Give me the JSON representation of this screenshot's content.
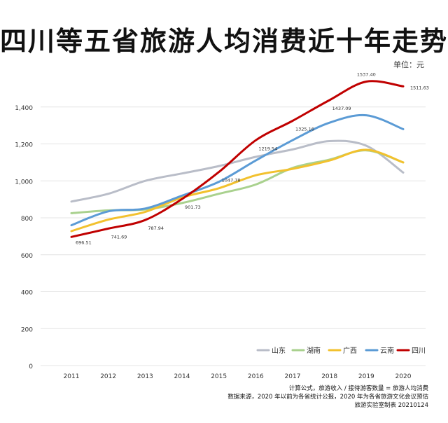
{
  "chart_data": {
    "type": "line",
    "title": "四川等五省旅游人均消费近十年走势",
    "unit": "单位：元",
    "x": [
      "2011",
      "2012",
      "2013",
      "2014",
      "2015",
      "2016",
      "2017",
      "2018",
      "2019",
      "2020"
    ],
    "ylim": [
      0,
      1600
    ],
    "yticks": [
      0,
      200,
      400,
      600,
      800,
      1000,
      1200,
      1400
    ],
    "ytick_labels": [
      "0",
      "200",
      "400",
      "600",
      "800",
      "1,000",
      "1,200",
      "1,400"
    ],
    "grid": true,
    "legend_position": "bottom-right",
    "series": [
      {
        "name": "山东",
        "color": "#b9bdc8",
        "values": [
          888,
          930,
          1000,
          1040,
          1080,
          1130,
          1170,
          1215,
          1190,
          1045
        ]
      },
      {
        "name": "湖南",
        "color": "#a9d18e",
        "values": [
          825,
          840,
          845,
          880,
          930,
          980,
          1070,
          1115,
          1165,
          1100
        ]
      },
      {
        "name": "广西",
        "color": "#f2c12e",
        "values": [
          728,
          790,
          832,
          910,
          960,
          1030,
          1065,
          1110,
          1168,
          1100
        ]
      },
      {
        "name": "云南",
        "color": "#5b9bd5",
        "values": [
          760,
          835,
          850,
          920,
          995,
          1110,
          1220,
          1315,
          1355,
          1280
        ]
      },
      {
        "name": "四川",
        "color": "#c00000",
        "values": [
          696.51,
          741.69,
          787.94,
          901.73,
          1047.78,
          1219.54,
          1325.16,
          1437.09,
          1537.4,
          1511.63
        ]
      }
    ],
    "data_labels": {
      "series": "四川",
      "labels": [
        "696.51",
        "741.69",
        "787.94",
        "901.73",
        "1047.78",
        "1219.54",
        "1325.16",
        "1437.09",
        "1537.40",
        "1511.63"
      ]
    }
  },
  "footer": {
    "line1": "计算公式，旅游收入 / 接待游客数量 = 旅游人均消费",
    "line2": "数据来源，2020 年以前为各省统计公报，2020 年为各省旅游文化会议预估",
    "line3": "旅游实验室制表 20210124"
  }
}
